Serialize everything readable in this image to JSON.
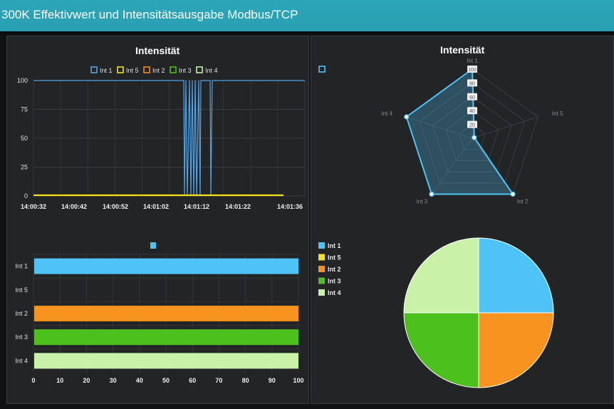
{
  "header": {
    "title": "300K Effektivwert und Intensitätsausgabe Modbus/TCP"
  },
  "line_chart": {
    "title": "Intensität"
  },
  "radar_chart": {
    "title": "Intensität"
  },
  "chart_data": [
    {
      "type": "line",
      "title": "Intensität",
      "series": [
        {
          "name": "Int 1",
          "color": "#4fa3e8"
        },
        {
          "name": "Int 5",
          "color": "#f2e21b"
        },
        {
          "name": "Int 2",
          "color": "#f28a22"
        },
        {
          "name": "Int 3",
          "color": "#4cc11e"
        },
        {
          "name": "Int 4",
          "color": "#c5f0a2"
        }
      ],
      "x_tick_labels": [
        "14:00:32",
        "14:00:42",
        "14:00:52",
        "14:01:02",
        "14:01:12",
        "14:01:22",
        "14:01:36"
      ],
      "y_ticks": [
        0,
        25,
        50,
        75,
        100
      ],
      "ylim": [
        0,
        100
      ],
      "grid": true,
      "legend": "top"
    },
    {
      "type": "bar",
      "orientation": "horizontal",
      "categories": [
        "Int 1",
        "Int 5",
        "Int 2",
        "Int 3",
        "Int 4"
      ],
      "values": [
        100,
        0,
        100,
        100,
        100
      ],
      "colors": [
        "#4fc3f7",
        "#f2e21b",
        "#f7931e",
        "#4cc11e",
        "#c9f2a8"
      ],
      "x_ticks": [
        0,
        10,
        20,
        30,
        40,
        50,
        60,
        70,
        80,
        90,
        100
      ],
      "xlim": [
        0,
        100
      ],
      "grid": true
    },
    {
      "type": "radar",
      "title": "Intensität",
      "categories": [
        "Int 1",
        "Int 5",
        "Int 2",
        "Int 3",
        "Int 4"
      ],
      "values": [
        100,
        0,
        100,
        100,
        100
      ],
      "scale_ticks": [
        "20",
        "40",
        "60",
        "80",
        "100"
      ],
      "color": "#4fc3f7"
    },
    {
      "type": "pie",
      "categories": [
        "Int 1",
        "Int 5",
        "Int 2",
        "Int 3",
        "Int 4"
      ],
      "values": [
        100,
        0,
        100,
        100,
        100
      ],
      "colors": [
        "#4fc3f7",
        "#f2e21b",
        "#f7931e",
        "#4cc11e",
        "#c9f2a8"
      ],
      "legend": "left"
    }
  ]
}
